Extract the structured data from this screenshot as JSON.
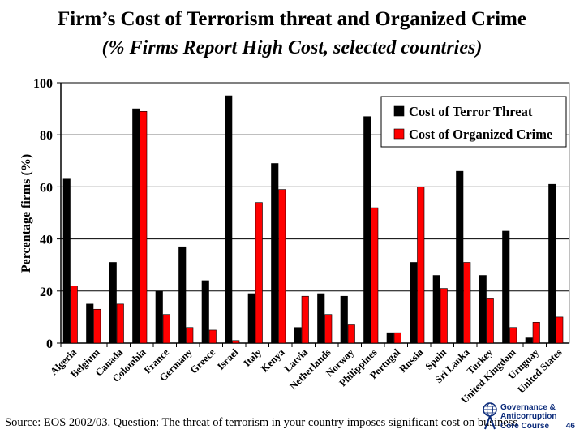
{
  "header": {
    "title": "Firm’s Cost of Terrorism threat and Organized Crime",
    "subtitle": "(% Firms Report High Cost, selected countries)"
  },
  "footer": {
    "source": "Source:  EOS 2002/03. Question: The threat of terrorism in your country imposes significant cost on business",
    "logo_line1": "Governance &",
    "logo_line2": "Anticorruption",
    "logo_line3": "Core Course",
    "page_number": "46"
  },
  "colors": {
    "terror": "#000000",
    "crime": "#ff0000",
    "plot_bg": "#ffffff",
    "axis": "#000000"
  },
  "chart_data": {
    "type": "bar",
    "title": "Firm’s Cost of Terrorism threat and Organized Crime",
    "subtitle": "(% Firms Report High Cost, selected countries)",
    "xlabel": "",
    "ylabel": "Percentage firms (%)",
    "ylim": [
      0,
      100
    ],
    "yticks": [
      "0",
      "20",
      "40",
      "60",
      "80",
      "100"
    ],
    "grid": true,
    "legend_position": "top-right",
    "categories": [
      "Algeria",
      "Belgium",
      "Canada",
      "Colombia",
      "France",
      "Germany",
      "Greece",
      "Israel",
      "Italy",
      "Kenya",
      "Latvia",
      "Netherlands",
      "Norway",
      "Philippines",
      "Portugal",
      "Russia",
      "Spain",
      "Sri Lanka",
      "Turkey",
      "United Kingdom",
      "Uruguay",
      "United States"
    ],
    "series": [
      {
        "name": "Cost of Terror Threat",
        "values": [
          63,
          15,
          31,
          90,
          20,
          37,
          24,
          95,
          19,
          69,
          6,
          19,
          18,
          87,
          4,
          31,
          26,
          66,
          26,
          43,
          2,
          61
        ]
      },
      {
        "name": "Cost of Organized Crime",
        "values": [
          22,
          13,
          15,
          89,
          11,
          6,
          5,
          1,
          54,
          59,
          18,
          11,
          7,
          52,
          4,
          60,
          21,
          31,
          17,
          6,
          8,
          10
        ]
      }
    ]
  }
}
